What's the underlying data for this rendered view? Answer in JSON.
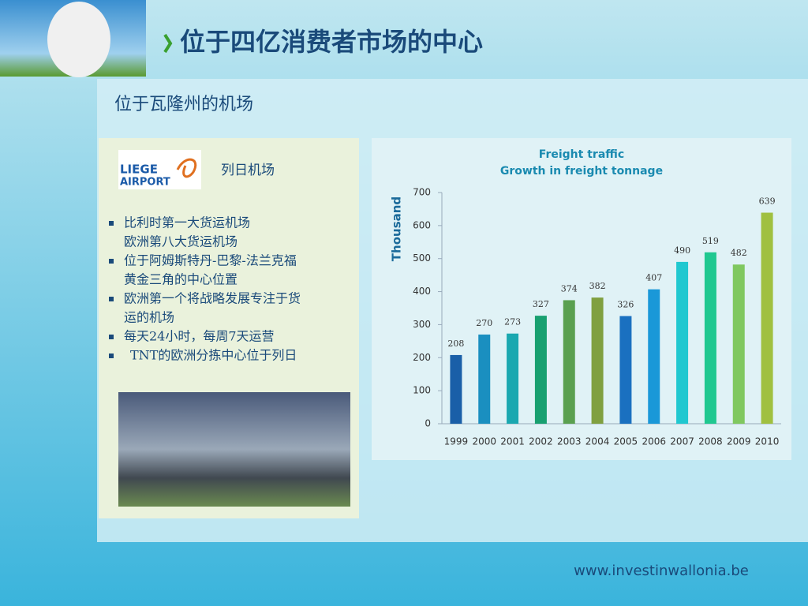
{
  "slide_title": "位于四亿消费者市场的中心",
  "section_title": "位于瓦隆州的机场",
  "logo": {
    "line1": "LIEGE",
    "line2": "AIRPORT"
  },
  "airport_name": "列日机场",
  "bullets": [
    [
      "比利时第一大货运机场",
      "欧洲第八大货运机场"
    ],
    [
      "位于阿姆斯特丹-巴黎-法兰克福",
      "黄金三角的中心位置"
    ],
    [
      "欧洲第一个将战略发展专注于货",
      "运的机场"
    ],
    [
      "每天24小时，每周7天运营"
    ],
    [
      "TNT的欧洲分拣中心位于列日"
    ]
  ],
  "footer": "www.investinwallonia.be",
  "chart_data": {
    "type": "bar",
    "title": "Freight traffic",
    "subtitle": "Growth in freight tonnage",
    "y_label": "Thousand",
    "categories": [
      "1999",
      "2000",
      "2001",
      "2002",
      "2003",
      "2004",
      "2005",
      "2006",
      "2007",
      "2008",
      "2009",
      "2010"
    ],
    "values": [
      208,
      270,
      273,
      327,
      374,
      382,
      326,
      407,
      490,
      519,
      482,
      639
    ],
    "colors": [
      "#1a5fa8",
      "#1a8fc0",
      "#1aa8b0",
      "#18a070",
      "#5aa050",
      "#80a040",
      "#1a70c0",
      "#1a98d8",
      "#20c8d0",
      "#20c890",
      "#80c860",
      "#a0c040"
    ],
    "ylim": [
      0,
      700
    ],
    "yticks": [
      0,
      100,
      200,
      300,
      400,
      500,
      600,
      700
    ],
    "grid": false
  }
}
